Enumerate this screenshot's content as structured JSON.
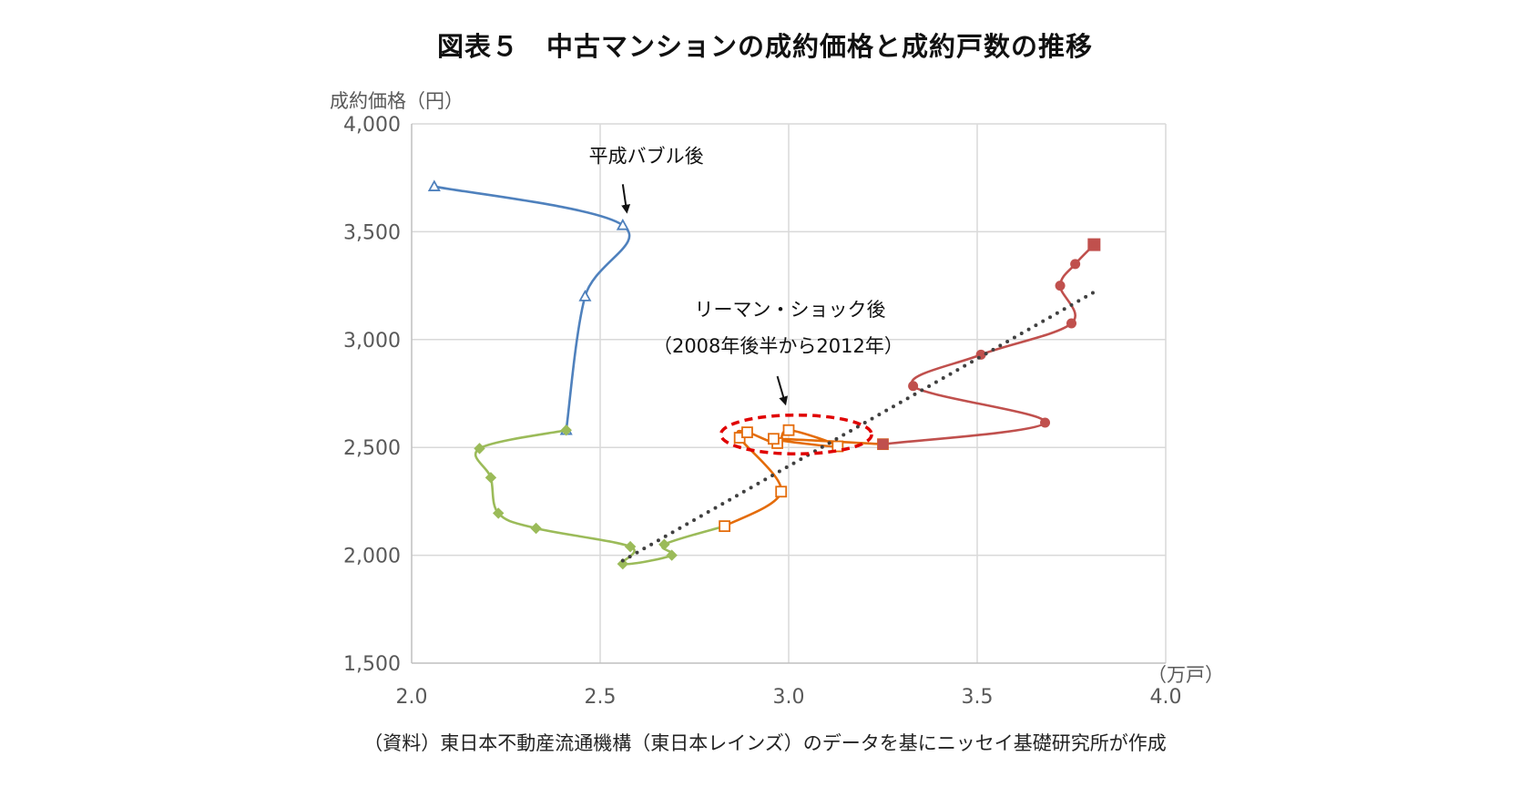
{
  "title": "図表５　中古マンションの成約価格と成約戸数の推移",
  "source": "（資料）東日本不動産流通機構（東日本レインズ）のデータを基にニッセイ基礎研究所が作成",
  "chart_data": {
    "type": "line",
    "ylabel": "成約価格（円）",
    "xlabel": "（万戸）",
    "xlim": [
      2.0,
      4.0
    ],
    "ylim": [
      1500,
      4000
    ],
    "x_ticks": [
      "2.0",
      "2.5",
      "3.0",
      "3.5",
      "4.0"
    ],
    "y_ticks": [
      "1,500",
      "2,000",
      "2,500",
      "3,000",
      "3,500",
      "4,000"
    ],
    "x_tick_values": [
      2.0,
      2.5,
      3.0,
      3.5,
      4.0
    ],
    "y_tick_values": [
      1500,
      2000,
      2500,
      3000,
      3500,
      4000
    ],
    "grid": true,
    "series": [
      {
        "color": "#4F81BD",
        "marker": "triangle-open",
        "points": [
          [
            2.06,
            3710
          ],
          [
            2.56,
            3530
          ],
          [
            2.46,
            3200
          ],
          [
            2.41,
            2580
          ]
        ]
      },
      {
        "color": "#9BBB59",
        "marker": "diamond",
        "points": [
          [
            2.41,
            2580
          ],
          [
            2.18,
            2495
          ],
          [
            2.21,
            2360
          ],
          [
            2.23,
            2195
          ],
          [
            2.33,
            2125
          ],
          [
            2.58,
            2040
          ],
          [
            2.56,
            1960
          ],
          [
            2.69,
            2000
          ],
          [
            2.67,
            2050
          ],
          [
            2.83,
            2135
          ]
        ]
      },
      {
        "color": "#E46C0A",
        "marker": "square-open",
        "points": [
          [
            2.83,
            2135
          ],
          [
            2.98,
            2295
          ],
          [
            2.87,
            2545
          ],
          [
            2.89,
            2570
          ],
          [
            2.97,
            2520
          ],
          [
            3.0,
            2580
          ],
          [
            3.13,
            2505
          ],
          [
            2.96,
            2540
          ],
          [
            3.25,
            2515
          ]
        ]
      },
      {
        "color": "#C0504D",
        "marker": "circle",
        "points": [
          [
            3.25,
            2515
          ],
          [
            3.68,
            2615
          ],
          [
            3.33,
            2785
          ],
          [
            3.51,
            2930
          ],
          [
            3.75,
            3075
          ],
          [
            3.72,
            3250
          ],
          [
            3.76,
            3350
          ],
          [
            3.81,
            3440
          ]
        ]
      },
      {
        "color": "#404040",
        "style": "dotted",
        "trend": true,
        "points": [
          [
            2.56,
            1975
          ],
          [
            3.82,
            3230
          ]
        ]
      }
    ],
    "annotations": [
      {
        "text": "平成バブル後",
        "x": 2.47,
        "y": 3820
      },
      {
        "text": "リーマン・ショック後",
        "x": 2.75,
        "y": 3110
      },
      {
        "text": "（2008年後半から2012年）",
        "x": 2.64,
        "y": 2940
      }
    ],
    "arrows": [
      {
        "from": [
          2.56,
          3720
        ],
        "to": [
          2.57,
          3600
        ]
      },
      {
        "from": [
          2.97,
          2830
        ],
        "to": [
          2.99,
          2710
        ]
      }
    ],
    "highlight_ellipse": {
      "cx": 3.02,
      "cy": 2560,
      "rx": 0.2,
      "ry": 90,
      "color": "#E00000"
    }
  }
}
